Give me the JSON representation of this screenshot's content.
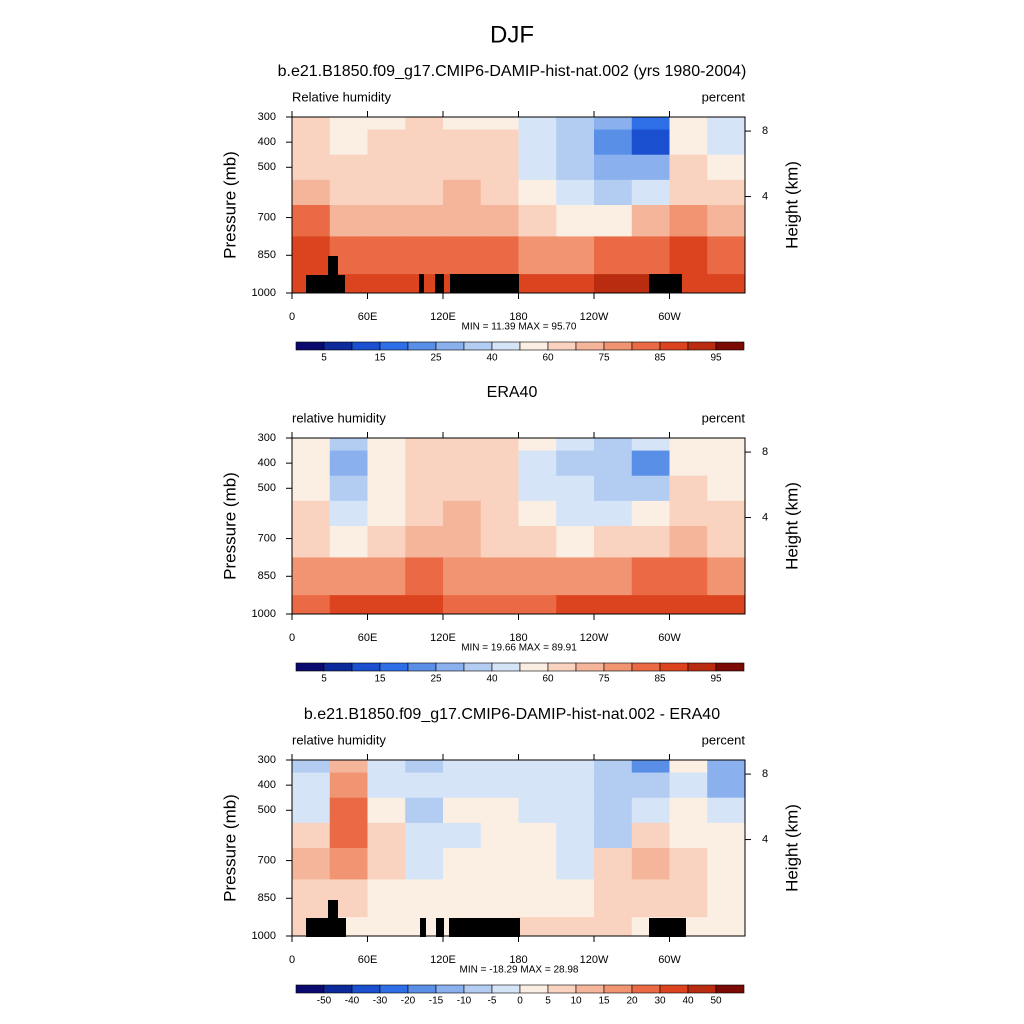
{
  "title": "DJF",
  "chart_data": [
    {
      "type": "contour",
      "subtitle": "b.e21.B1850.f09_g17.CMIP6-DAMIP-hist-nat.002 (yrs 1980-2004)",
      "left_label": "Relative humidity",
      "right_label": "percent",
      "ylabel": "Pressure (mb)",
      "y2label": "Height (km)",
      "stats": "MIN =  11.39  MAX =  95.70",
      "x": [
        15,
        45,
        75,
        105,
        135,
        165,
        195,
        225,
        255,
        285,
        315,
        345
      ],
      "y": [
        300,
        400,
        500,
        600,
        700,
        850,
        1000
      ],
      "z": [
        [
          62,
          50,
          55,
          60,
          55,
          58,
          45,
          35,
          25,
          15,
          55,
          40
        ],
        [
          62,
          55,
          60,
          62,
          62,
          60,
          45,
          30,
          20,
          12,
          55,
          40
        ],
        [
          65,
          60,
          62,
          65,
          68,
          62,
          48,
          35,
          25,
          25,
          60,
          55
        ],
        [
          72,
          65,
          65,
          68,
          70,
          65,
          52,
          40,
          35,
          45,
          65,
          62
        ],
        [
          80,
          70,
          70,
          72,
          72,
          70,
          60,
          55,
          55,
          70,
          75,
          72
        ],
        [
          85,
          80,
          80,
          82,
          80,
          80,
          78,
          78,
          80,
          82,
          85,
          80
        ],
        [
          88,
          85,
          85,
          85,
          85,
          85,
          88,
          88,
          90,
          90,
          88,
          88
        ]
      ],
      "xlim": [
        0,
        360
      ],
      "ylim": [
        1000,
        300
      ],
      "xticks": [
        0,
        {
          "value": 60,
          "label": "60E"
        },
        {
          "value": 120,
          "label": "120E"
        },
        180,
        {
          "value": 240,
          "label": "120W"
        },
        {
          "value": 300,
          "label": "60W"
        }
      ],
      "yticks": [
        300,
        400,
        500,
        700,
        850,
        1000
      ],
      "y2ticks": [
        8,
        4
      ],
      "colorbar": {
        "levels": [
          5,
          10,
          15,
          20,
          25,
          30,
          40,
          50,
          60,
          70,
          75,
          80,
          85,
          90,
          95
        ],
        "ticks": [
          5,
          15,
          25,
          40,
          60,
          75,
          85,
          95
        ],
        "colors": [
          "#0a0a6e",
          "#0c2a9a",
          "#1a4fd0",
          "#2e6fe8",
          "#5a8fe8",
          "#8ab0ee",
          "#b3ccf2",
          "#d6e4f7",
          "#fbeee2",
          "#f9d3bf",
          "#f5b59a",
          "#f19472",
          "#ea6a45",
          "#dc4420",
          "#b92c10",
          "#7a0a04"
        ]
      }
    },
    {
      "type": "contour",
      "subtitle": "ERA40",
      "left_label": "relative humidity",
      "right_label": "percent",
      "ylabel": "Pressure (mb)",
      "y2label": "Height (km)",
      "stats": "MIN =  19.66  MAX =  89.91",
      "x": [
        15,
        45,
        75,
        105,
        135,
        165,
        195,
        225,
        255,
        285,
        315,
        345
      ],
      "y": [
        300,
        400,
        500,
        600,
        700,
        850,
        1000
      ],
      "z": [
        [
          55,
          30,
          50,
          60,
          60,
          60,
          50,
          40,
          35,
          40,
          55,
          50
        ],
        [
          55,
          25,
          55,
          65,
          65,
          62,
          45,
          35,
          30,
          20,
          55,
          50
        ],
        [
          58,
          35,
          55,
          65,
          68,
          62,
          48,
          40,
          35,
          35,
          60,
          58
        ],
        [
          62,
          45,
          55,
          68,
          70,
          65,
          52,
          45,
          45,
          50,
          65,
          62
        ],
        [
          65,
          50,
          60,
          70,
          70,
          68,
          60,
          58,
          60,
          65,
          70,
          68
        ],
        [
          78,
          75,
          78,
          80,
          78,
          78,
          75,
          75,
          75,
          80,
          80,
          78
        ],
        [
          82,
          85,
          85,
          85,
          82,
          80,
          82,
          85,
          85,
          88,
          85,
          85
        ]
      ],
      "xlim": [
        0,
        360
      ],
      "ylim": [
        1000,
        300
      ],
      "xticks": [
        0,
        {
          "value": 60,
          "label": "60E"
        },
        {
          "value": 120,
          "label": "120E"
        },
        180,
        {
          "value": 240,
          "label": "120W"
        },
        {
          "value": 300,
          "label": "60W"
        }
      ],
      "yticks": [
        300,
        400,
        500,
        700,
        850,
        1000
      ],
      "y2ticks": [
        8,
        4
      ],
      "colorbar": {
        "levels": [
          5,
          10,
          15,
          20,
          25,
          30,
          40,
          50,
          60,
          70,
          75,
          80,
          85,
          90,
          95
        ],
        "ticks": [
          5,
          15,
          25,
          40,
          60,
          75,
          85,
          95
        ],
        "colors": [
          "#0a0a6e",
          "#0c2a9a",
          "#1a4fd0",
          "#2e6fe8",
          "#5a8fe8",
          "#8ab0ee",
          "#b3ccf2",
          "#d6e4f7",
          "#fbeee2",
          "#f9d3bf",
          "#f5b59a",
          "#f19472",
          "#ea6a45",
          "#dc4420",
          "#b92c10",
          "#7a0a04"
        ]
      }
    },
    {
      "type": "contour",
      "subtitle": "b.e21.B1850.f09_g17.CMIP6-DAMIP-hist-nat.002 - ERA40",
      "left_label": "relative humidity",
      "right_label": "percent",
      "ylabel": "Pressure (mb)",
      "y2label": "Height (km)",
      "stats": "MIN = -18.29  MAX =  28.98",
      "x": [
        15,
        45,
        75,
        105,
        135,
        165,
        195,
        225,
        255,
        285,
        315,
        345
      ],
      "y": [
        300,
        400,
        500,
        600,
        700,
        850,
        1000
      ],
      "z": [
        [
          -10,
          10,
          -5,
          -10,
          -5,
          -3,
          -5,
          -5,
          -8,
          -20,
          0,
          -15
        ],
        [
          -5,
          15,
          -5,
          -5,
          -5,
          -5,
          -3,
          -5,
          -10,
          -10,
          -3,
          -15
        ],
        [
          -3,
          20,
          3,
          -8,
          0,
          3,
          -2,
          -5,
          -8,
          -5,
          0,
          -5
        ],
        [
          5,
          20,
          8,
          -5,
          -3,
          0,
          0,
          -5,
          -8,
          5,
          3,
          0
        ],
        [
          10,
          15,
          5,
          -5,
          3,
          2,
          0,
          -3,
          5,
          10,
          5,
          3
        ],
        [
          5,
          5,
          3,
          2,
          0,
          0,
          0,
          3,
          5,
          5,
          5,
          3
        ],
        [
          5,
          0,
          0,
          0,
          2,
          3,
          5,
          5,
          5,
          3,
          3,
          3
        ]
      ],
      "xlim": [
        0,
        360
      ],
      "ylim": [
        1000,
        300
      ],
      "xticks": [
        0,
        {
          "value": 60,
          "label": "60E"
        },
        {
          "value": 120,
          "label": "120E"
        },
        180,
        {
          "value": 240,
          "label": "120W"
        },
        {
          "value": 300,
          "label": "60W"
        }
      ],
      "yticks": [
        300,
        400,
        500,
        700,
        850,
        1000
      ],
      "y2ticks": [
        8,
        4
      ],
      "colorbar": {
        "levels": [
          -50,
          -40,
          -30,
          -20,
          -15,
          -10,
          -5,
          0,
          5,
          10,
          15,
          20,
          30,
          40,
          50
        ],
        "ticks": [
          -50,
          -40,
          -30,
          -20,
          -15,
          -10,
          -5,
          0,
          5,
          10,
          15,
          20,
          30,
          40,
          50
        ],
        "colors": [
          "#0a0a6e",
          "#0c2a9a",
          "#1a4fd0",
          "#2e6fe8",
          "#5a8fe8",
          "#8ab0ee",
          "#b3ccf2",
          "#d6e4f7",
          "#fbeee2",
          "#f9d3bf",
          "#f5b59a",
          "#f19472",
          "#ea6a45",
          "#dc4420",
          "#b92c10",
          "#7a0a04"
        ]
      }
    }
  ]
}
